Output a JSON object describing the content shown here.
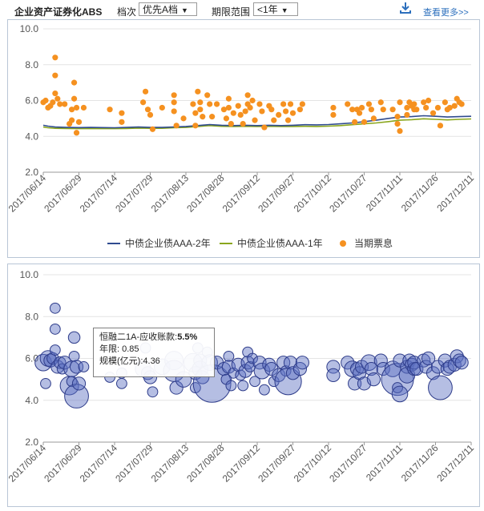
{
  "header": {
    "title": "企业资产证券化ABS",
    "grade_label": "档次",
    "grade_value": "优先A档",
    "range_label": "期限范围",
    "range_value": "<1年",
    "more_label": "查看更多>>"
  },
  "tooltip": {
    "name": "恒融二1A-应收账款",
    "sep": ":",
    "rate": "5.5%",
    "term_label": "年限:",
    "term_value": "0.85",
    "size_label": "规模(亿元):",
    "size_value": "4.36"
  },
  "chart_data": [
    {
      "type": "line+scatter",
      "ylim": [
        2.0,
        10.0
      ],
      "yticks": [
        "10.0",
        "8.0",
        "6.0",
        "4.0",
        "2.0"
      ],
      "categories": [
        "2017/06/14",
        "2017/06/29",
        "2017/07/14",
        "2017/07/29",
        "2017/08/13",
        "2017/08/28",
        "2017/09/12",
        "2017/09/27",
        "2017/10/12",
        "2017/10/27",
        "2017/11/11",
        "2017/11/26",
        "2017/12/11"
      ],
      "legend": [
        "中债企业债AAA-2年",
        "中债企业债AAA-1年",
        "当期票息"
      ],
      "colors": {
        "aaa2": "#2f4b8f",
        "aaa1": "#8aa61d",
        "coupon": "#f59120"
      },
      "series": [
        {
          "name": "中债企业债AAA-2年",
          "x": [
            0,
            2,
            5,
            10,
            15,
            20,
            25,
            30,
            35,
            40,
            45,
            50,
            55,
            60,
            65,
            70,
            75,
            80,
            85,
            90,
            95,
            100,
            105,
            110,
            115,
            120,
            125,
            130,
            135,
            140,
            145,
            150,
            155,
            160,
            165,
            170,
            175,
            180
          ],
          "y": [
            4.62,
            4.57,
            4.52,
            4.5,
            4.49,
            4.5,
            4.49,
            4.48,
            4.5,
            4.52,
            4.5,
            4.5,
            4.52,
            4.55,
            4.6,
            4.66,
            4.62,
            4.6,
            4.62,
            4.6,
            4.62,
            4.6,
            4.62,
            4.65,
            4.64,
            4.66,
            4.7,
            4.75,
            4.82,
            4.9,
            5.0,
            5.08,
            5.1,
            5.15,
            5.12,
            5.08,
            5.1,
            5.12
          ]
        },
        {
          "name": "中债企业债AAA-1年",
          "x": [
            0,
            2,
            5,
            10,
            15,
            20,
            25,
            30,
            35,
            40,
            45,
            50,
            55,
            60,
            65,
            70,
            75,
            80,
            85,
            90,
            95,
            100,
            105,
            110,
            115,
            120,
            125,
            130,
            135,
            140,
            145,
            150,
            155,
            160,
            165,
            170,
            175,
            180
          ],
          "y": [
            4.52,
            4.48,
            4.45,
            4.44,
            4.43,
            4.44,
            4.43,
            4.43,
            4.44,
            4.46,
            4.45,
            4.45,
            4.48,
            4.5,
            4.55,
            4.6,
            4.56,
            4.55,
            4.56,
            4.55,
            4.56,
            4.55,
            4.55,
            4.56,
            4.55,
            4.57,
            4.6,
            4.65,
            4.7,
            4.75,
            4.82,
            4.9,
            4.93,
            4.98,
            4.95,
            4.92,
            4.95,
            4.97
          ]
        },
        {
          "name": "当期票息",
          "points": [
            [
              0,
              5.9
            ],
            [
              1,
              6.0
            ],
            [
              2,
              5.6
            ],
            [
              3,
              5.7
            ],
            [
              4,
              5.9
            ],
            [
              5,
              8.4
            ],
            [
              5,
              7.4
            ],
            [
              5,
              6.4
            ],
            [
              6,
              6.1
            ],
            [
              7,
              5.8
            ],
            [
              9,
              5.8
            ],
            [
              11,
              4.7
            ],
            [
              12,
              5.5
            ],
            [
              12,
              4.9
            ],
            [
              13,
              7.0
            ],
            [
              13,
              6.1
            ],
            [
              14,
              5.6
            ],
            [
              14,
              4.2
            ],
            [
              15,
              4.8
            ],
            [
              17,
              5.6
            ],
            [
              28,
              5.5
            ],
            [
              33,
              5.3
            ],
            [
              33,
              4.8
            ],
            [
              42,
              5.9
            ],
            [
              43,
              6.5
            ],
            [
              44,
              5.5
            ],
            [
              45,
              5.2
            ],
            [
              46,
              4.4
            ],
            [
              50,
              5.6
            ],
            [
              55,
              6.3
            ],
            [
              55,
              5.9
            ],
            [
              55,
              5.4
            ],
            [
              56,
              4.6
            ],
            [
              59,
              5.0
            ],
            [
              63,
              5.8
            ],
            [
              64,
              5.3
            ],
            [
              64,
              4.6
            ],
            [
              65,
              6.5
            ],
            [
              66,
              5.9
            ],
            [
              66,
              5.5
            ],
            [
              67,
              5.1
            ],
            [
              69,
              6.3
            ],
            [
              70,
              5.8
            ],
            [
              71,
              5.1
            ],
            [
              73,
              5.8
            ],
            [
              76,
              5.5
            ],
            [
              77,
              5.0
            ],
            [
              78,
              6.1
            ],
            [
              78,
              5.6
            ],
            [
              79,
              4.7
            ],
            [
              80,
              5.3
            ],
            [
              82,
              5.7
            ],
            [
              83,
              5.2
            ],
            [
              84,
              4.7
            ],
            [
              85,
              5.4
            ],
            [
              86,
              5.8
            ],
            [
              86,
              6.3
            ],
            [
              87,
              5.6
            ],
            [
              88,
              6.0
            ],
            [
              89,
              4.9
            ],
            [
              91,
              5.8
            ],
            [
              92,
              5.4
            ],
            [
              93,
              4.5
            ],
            [
              95,
              5.7
            ],
            [
              96,
              5.5
            ],
            [
              97,
              4.9
            ],
            [
              99,
              5.2
            ],
            [
              101,
              5.8
            ],
            [
              102,
              5.4
            ],
            [
              103,
              4.9
            ],
            [
              104,
              5.8
            ],
            [
              105,
              5.3
            ],
            [
              108,
              5.5
            ],
            [
              109,
              5.8
            ],
            [
              122,
              5.6
            ],
            [
              122,
              5.2
            ],
            [
              128,
              5.8
            ],
            [
              130,
              5.5
            ],
            [
              131,
              4.8
            ],
            [
              132,
              5.5
            ],
            [
              133,
              5.3
            ],
            [
              134,
              5.6
            ],
            [
              135,
              4.8
            ],
            [
              137,
              5.8
            ],
            [
              138,
              5.5
            ],
            [
              139,
              5.0
            ],
            [
              142,
              5.9
            ],
            [
              143,
              5.5
            ],
            [
              147,
              5.5
            ],
            [
              149,
              5.1
            ],
            [
              149,
              4.7
            ],
            [
              150,
              5.9
            ],
            [
              150,
              4.3
            ],
            [
              153,
              5.6
            ],
            [
              153,
              5.2
            ],
            [
              154,
              5.9
            ],
            [
              155,
              5.7
            ],
            [
              156,
              5.5
            ],
            [
              156,
              5.8
            ],
            [
              157,
              5.5
            ],
            [
              160,
              5.9
            ],
            [
              161,
              5.6
            ],
            [
              162,
              6.0
            ],
            [
              164,
              5.3
            ],
            [
              166,
              5.6
            ],
            [
              167,
              4.6
            ],
            [
              169,
              5.9
            ],
            [
              170,
              5.5
            ],
            [
              171,
              5.6
            ],
            [
              173,
              5.7
            ],
            [
              174,
              6.1
            ],
            [
              175,
              5.9
            ],
            [
              176,
              5.8
            ]
          ]
        }
      ]
    },
    {
      "type": "bubble",
      "ylim": [
        2.0,
        10.0
      ],
      "yticks": [
        "10.0",
        "8.0",
        "6.0",
        "4.0",
        "2.0"
      ],
      "categories": [
        "2017/06/14",
        "2017/06/29",
        "2017/07/14",
        "2017/07/29",
        "2017/08/13",
        "2017/08/28",
        "2017/09/12",
        "2017/09/27",
        "2017/10/12",
        "2017/10/27",
        "2017/11/11",
        "2017/11/26",
        "2017/12/11"
      ],
      "color": "#5b6fc0",
      "bubbles": [
        [
          0,
          5.8,
          4.3
        ],
        [
          1,
          4.8,
          2
        ],
        [
          2,
          6.0,
          4
        ],
        [
          3,
          5.9,
          3
        ],
        [
          4,
          6.0,
          2.5
        ],
        [
          5,
          8.4,
          2
        ],
        [
          5,
          7.4,
          2
        ],
        [
          5,
          6.4,
          2
        ],
        [
          6,
          5.6,
          3
        ],
        [
          7,
          5.8,
          2.5
        ],
        [
          8,
          5.5,
          2
        ],
        [
          9,
          5.8,
          3
        ],
        [
          11,
          4.7,
          5
        ],
        [
          12,
          5.5,
          4
        ],
        [
          12,
          4.9,
          2
        ],
        [
          13,
          7.0,
          2.5
        ],
        [
          13,
          6.1,
          2
        ],
        [
          14,
          5.6,
          3
        ],
        [
          14,
          4.2,
          7
        ],
        [
          15,
          4.8,
          3
        ],
        [
          17,
          5.6,
          2
        ],
        [
          28,
          5.1,
          2
        ],
        [
          33,
          5.3,
          2
        ],
        [
          33,
          4.8,
          2
        ],
        [
          42,
          5.5,
          4
        ],
        [
          43,
          6.5,
          2
        ],
        [
          44,
          5.3,
          3
        ],
        [
          45,
          5.1,
          3
        ],
        [
          46,
          4.4,
          2
        ],
        [
          50,
          5.6,
          4
        ],
        [
          55,
          5.9,
          5
        ],
        [
          55,
          5.4,
          6
        ],
        [
          56,
          4.6,
          3
        ],
        [
          59,
          5.0,
          4
        ],
        [
          63,
          5.8,
          5
        ],
        [
          64,
          5.3,
          3
        ],
        [
          64,
          4.6,
          2
        ],
        [
          65,
          6.5,
          2
        ],
        [
          66,
          5.9,
          3
        ],
        [
          66,
          5.5,
          4
        ],
        [
          67,
          5.1,
          3
        ],
        [
          69,
          6.3,
          2
        ],
        [
          70,
          5.8,
          4
        ],
        [
          71,
          4.8,
          12
        ],
        [
          73,
          5.8,
          3
        ],
        [
          76,
          5.5,
          3
        ],
        [
          77,
          5.0,
          2
        ],
        [
          78,
          6.1,
          2
        ],
        [
          78,
          5.6,
          3
        ],
        [
          79,
          4.7,
          2
        ],
        [
          80,
          5.3,
          2
        ],
        [
          82,
          5.7,
          3
        ],
        [
          83,
          5.2,
          2
        ],
        [
          84,
          4.7,
          2
        ],
        [
          85,
          5.4,
          3
        ],
        [
          86,
          5.8,
          3
        ],
        [
          86,
          6.3,
          2
        ],
        [
          87,
          5.6,
          2
        ],
        [
          88,
          6.0,
          2
        ],
        [
          89,
          4.9,
          2
        ],
        [
          91,
          5.8,
          3
        ],
        [
          92,
          5.4,
          4
        ],
        [
          93,
          4.5,
          2
        ],
        [
          95,
          5.7,
          3
        ],
        [
          96,
          5.5,
          3
        ],
        [
          97,
          4.9,
          2
        ],
        [
          99,
          5.2,
          3
        ],
        [
          101,
          5.8,
          3
        ],
        [
          102,
          5.4,
          2
        ],
        [
          103,
          4.9,
          8
        ],
        [
          104,
          5.8,
          3
        ],
        [
          105,
          5.3,
          3
        ],
        [
          108,
          5.5,
          3
        ],
        [
          109,
          5.8,
          3
        ],
        [
          122,
          5.6,
          3
        ],
        [
          122,
          5.2,
          3
        ],
        [
          128,
          5.8,
          3
        ],
        [
          130,
          5.5,
          4
        ],
        [
          131,
          4.8,
          3
        ],
        [
          132,
          5.5,
          3
        ],
        [
          133,
          5.3,
          3
        ],
        [
          134,
          5.6,
          3
        ],
        [
          135,
          4.8,
          3
        ],
        [
          137,
          5.8,
          4
        ],
        [
          138,
          5.5,
          3
        ],
        [
          139,
          5.0,
          3
        ],
        [
          142,
          5.9,
          3
        ],
        [
          143,
          5.5,
          3
        ],
        [
          147,
          5.5,
          4
        ],
        [
          149,
          5.0,
          10
        ],
        [
          149,
          4.6,
          2
        ],
        [
          150,
          5.9,
          3
        ],
        [
          150,
          4.3,
          4
        ],
        [
          153,
          5.6,
          3
        ],
        [
          153,
          5.2,
          4
        ],
        [
          154,
          5.9,
          3
        ],
        [
          155,
          5.7,
          3
        ],
        [
          156,
          5.5,
          3
        ],
        [
          156,
          5.8,
          3
        ],
        [
          157,
          5.5,
          3
        ],
        [
          160,
          5.9,
          3
        ],
        [
          161,
          5.6,
          3
        ],
        [
          162,
          6.0,
          3
        ],
        [
          164,
          5.3,
          3
        ],
        [
          166,
          5.6,
          3
        ],
        [
          167,
          4.6,
          7
        ],
        [
          169,
          5.9,
          3
        ],
        [
          170,
          5.5,
          3
        ],
        [
          171,
          5.6,
          3
        ],
        [
          173,
          5.7,
          3
        ],
        [
          174,
          6.1,
          3
        ],
        [
          175,
          5.9,
          3
        ],
        [
          176,
          5.8,
          3
        ]
      ]
    }
  ]
}
